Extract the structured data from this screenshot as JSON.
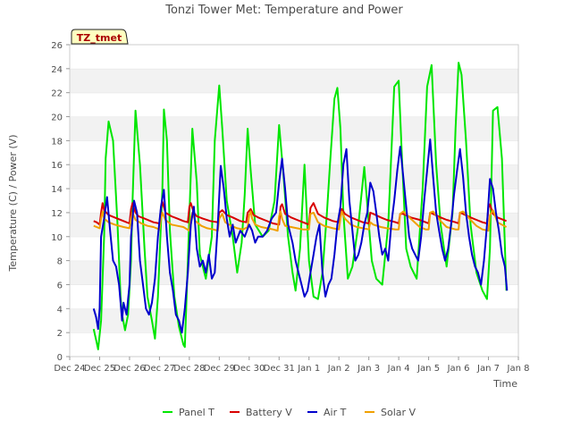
{
  "chart_data": {
    "type": "line",
    "title": "Tonzi Tower Met: Temperature and Power",
    "xlabel": "Time",
    "ylabel": "Temperature (C) / Power (V)",
    "badge": "TZ_tmet",
    "ylim": [
      0,
      26
    ],
    "xlim": [
      0,
      15
    ],
    "grid": "horizontal bands",
    "legend_position": "bottom",
    "x_ticks": [
      {
        "pos": 0,
        "label": "Dec 24"
      },
      {
        "pos": 1,
        "label": "Dec 25"
      },
      {
        "pos": 2,
        "label": "Dec 26"
      },
      {
        "pos": 3,
        "label": "Dec 27"
      },
      {
        "pos": 4,
        "label": "Dec 28"
      },
      {
        "pos": 5,
        "label": "Dec 29"
      },
      {
        "pos": 6,
        "label": "Dec 30"
      },
      {
        "pos": 7,
        "label": "Dec 31"
      },
      {
        "pos": 8,
        "label": "Jan 1"
      },
      {
        "pos": 9,
        "label": "Jan 2"
      },
      {
        "pos": 10,
        "label": "Jan 3"
      },
      {
        "pos": 11,
        "label": "Jan 4"
      },
      {
        "pos": 12,
        "label": "Jan 5"
      },
      {
        "pos": 13,
        "label": "Jan 6"
      },
      {
        "pos": 14,
        "label": "Jan 7"
      },
      {
        "pos": 15,
        "label": "Jan 8"
      }
    ],
    "y_ticks": [
      0,
      2,
      4,
      6,
      8,
      10,
      12,
      14,
      16,
      18,
      20,
      22,
      24,
      26
    ],
    "series": [
      {
        "name": "Panel T",
        "color": "#00e600",
        "x": [
          0.8,
          0.9,
          0.95,
          1.05,
          1.15,
          1.2,
          1.3,
          1.45,
          1.6,
          1.7,
          1.75,
          1.85,
          1.95,
          2.05,
          2.1,
          2.2,
          2.35,
          2.5,
          2.6,
          2.75,
          2.85,
          2.95,
          3.1,
          3.15,
          3.25,
          3.35,
          3.5,
          3.65,
          3.8,
          3.85,
          3.95,
          4.1,
          4.25,
          4.35,
          4.55,
          4.75,
          4.85,
          5.0,
          5.1,
          5.25,
          5.45,
          5.6,
          5.75,
          5.85,
          5.95,
          6.05,
          6.2,
          6.45,
          6.65,
          6.85,
          7.0,
          7.15,
          7.3,
          7.45,
          7.55,
          7.7,
          7.85,
          8.0,
          8.15,
          8.3,
          8.45,
          8.6,
          8.7,
          8.85,
          8.95,
          9.05,
          9.15,
          9.3,
          9.45,
          9.65,
          9.85,
          10.0,
          10.1,
          10.25,
          10.45,
          10.65,
          10.85,
          11.0,
          11.1,
          11.25,
          11.4,
          11.6,
          11.8,
          11.95,
          12.1,
          12.25,
          12.4,
          12.6,
          12.8,
          12.9,
          13.0,
          13.1,
          13.25,
          13.4,
          13.6,
          13.8,
          13.95,
          14.05,
          14.15,
          14.3,
          14.45,
          14.6
        ],
        "values": [
          2.3,
          1.2,
          0.6,
          3.0,
          10.0,
          16.5,
          19.6,
          18.0,
          11.0,
          5.0,
          3.5,
          2.2,
          3.5,
          8.0,
          13.0,
          20.5,
          16.0,
          9.0,
          5.0,
          3.0,
          1.5,
          5.0,
          14.0,
          20.6,
          18.0,
          10.5,
          5.0,
          2.5,
          1.0,
          0.8,
          8.0,
          19.0,
          14.5,
          8.5,
          6.5,
          10.0,
          18.0,
          22.6,
          19.0,
          13.0,
          10.0,
          7.0,
          9.5,
          13.5,
          19.0,
          15.5,
          11.0,
          10.0,
          10.5,
          13.0,
          19.3,
          15.0,
          10.0,
          7.0,
          5.5,
          9.0,
          16.0,
          8.0,
          5.0,
          4.8,
          7.0,
          12.0,
          16.0,
          21.5,
          22.4,
          19.0,
          12.0,
          6.5,
          7.5,
          11.0,
          15.8,
          11.0,
          8.0,
          6.5,
          6.0,
          11.0,
          22.5,
          23.0,
          17.0,
          9.0,
          7.5,
          6.5,
          14.0,
          22.5,
          24.3,
          16.0,
          11.0,
          7.5,
          12.0,
          19.0,
          24.5,
          23.5,
          18.0,
          11.0,
          7.0,
          5.5,
          4.8,
          9.0,
          20.5,
          20.8,
          16.5,
          5.5
        ]
      },
      {
        "name": "Battery V",
        "color": "#d80000",
        "x": [
          0.8,
          0.9,
          1.0,
          1.05,
          1.1,
          1.15,
          1.3,
          1.5,
          1.8,
          2.0,
          2.05,
          2.1,
          2.2,
          2.3,
          2.5,
          2.8,
          3.0,
          3.05,
          3.1,
          3.2,
          3.4,
          3.6,
          3.8,
          3.95,
          4.0,
          4.05,
          4.15,
          4.25,
          4.45,
          4.7,
          4.95,
          5.0,
          5.1,
          5.25,
          5.45,
          5.7,
          5.9,
          5.95,
          6.05,
          6.15,
          6.3,
          6.5,
          6.8,
          7.0,
          7.05,
          7.1,
          7.2,
          7.4,
          7.6,
          7.8,
          8.0,
          8.05,
          8.15,
          8.3,
          8.5,
          8.8,
          9.0,
          9.05,
          9.1,
          9.2,
          9.4,
          9.6,
          9.8,
          10.0,
          10.05,
          10.15,
          10.4,
          10.6,
          10.9,
          11.0,
          11.05,
          11.15,
          11.4,
          11.7,
          11.9,
          12.0,
          12.05,
          12.15,
          12.4,
          12.6,
          12.9,
          13.0,
          13.05,
          13.15,
          13.4,
          13.6,
          13.8,
          13.95,
          14.0,
          14.05,
          14.15,
          14.3,
          14.6
        ],
        "values": [
          11.3,
          11.2,
          11.0,
          12.0,
          12.8,
          12.2,
          11.8,
          11.6,
          11.3,
          11.1,
          12.3,
          12.8,
          12.0,
          11.7,
          11.5,
          11.2,
          11.1,
          12.4,
          12.9,
          12.0,
          11.7,
          11.5,
          11.3,
          11.2,
          12.5,
          12.8,
          12.0,
          11.7,
          11.5,
          11.3,
          11.2,
          12.0,
          12.2,
          11.8,
          11.6,
          11.3,
          11.2,
          12.0,
          12.3,
          11.8,
          11.6,
          11.4,
          11.1,
          11.0,
          12.5,
          12.7,
          11.9,
          11.6,
          11.4,
          11.2,
          11.0,
          12.4,
          12.8,
          11.9,
          11.6,
          11.3,
          11.2,
          11.9,
          12.3,
          11.9,
          11.6,
          11.4,
          11.2,
          11.1,
          12.0,
          11.9,
          11.6,
          11.4,
          11.2,
          11.1,
          11.9,
          11.9,
          11.6,
          11.4,
          11.2,
          11.1,
          12.0,
          11.9,
          11.6,
          11.4,
          11.2,
          11.1,
          12.0,
          11.9,
          11.6,
          11.4,
          11.2,
          11.1,
          12.4,
          12.7,
          11.9,
          11.6,
          11.3
        ]
      },
      {
        "name": "Air T",
        "color": "#0000cc",
        "x": [
          0.8,
          0.88,
          0.95,
          1.0,
          1.05,
          1.15,
          1.25,
          1.35,
          1.45,
          1.55,
          1.65,
          1.75,
          1.8,
          1.9,
          2.0,
          2.05,
          2.15,
          2.25,
          2.35,
          2.45,
          2.55,
          2.65,
          2.75,
          2.85,
          2.95,
          3.05,
          3.15,
          3.25,
          3.35,
          3.45,
          3.55,
          3.65,
          3.75,
          3.85,
          3.95,
          4.05,
          4.15,
          4.25,
          4.35,
          4.45,
          4.55,
          4.65,
          4.75,
          4.85,
          4.95,
          5.05,
          5.15,
          5.25,
          5.35,
          5.45,
          5.55,
          5.7,
          5.85,
          6.0,
          6.1,
          6.2,
          6.3,
          6.45,
          6.6,
          6.75,
          6.9,
          7.0,
          7.1,
          7.2,
          7.3,
          7.45,
          7.55,
          7.65,
          7.75,
          7.85,
          7.95,
          8.05,
          8.15,
          8.25,
          8.35,
          8.45,
          8.55,
          8.65,
          8.75,
          8.85,
          8.95,
          9.05,
          9.15,
          9.25,
          9.35,
          9.45,
          9.55,
          9.65,
          9.75,
          9.85,
          9.95,
          10.05,
          10.15,
          10.25,
          10.35,
          10.45,
          10.55,
          10.65,
          10.75,
          10.85,
          10.95,
          11.05,
          11.15,
          11.25,
          11.35,
          11.45,
          11.55,
          11.65,
          11.75,
          11.85,
          11.95,
          12.05,
          12.15,
          12.25,
          12.35,
          12.45,
          12.55,
          12.65,
          12.75,
          12.85,
          12.95,
          13.05,
          13.15,
          13.25,
          13.35,
          13.45,
          13.55,
          13.65,
          13.75,
          13.85,
          13.95,
          14.05,
          14.15,
          14.25,
          14.35,
          14.45,
          14.55,
          14.62
        ],
        "values": [
          4.0,
          3.3,
          2.3,
          4.0,
          10.0,
          11.5,
          13.3,
          10.5,
          8.0,
          7.5,
          6.0,
          3.0,
          4.5,
          3.5,
          6.0,
          10.0,
          13.0,
          12.0,
          8.0,
          6.0,
          4.0,
          3.5,
          4.5,
          6.5,
          10.0,
          12.5,
          13.9,
          10.0,
          7.0,
          5.5,
          3.5,
          3.0,
          2.0,
          4.0,
          7.0,
          11.0,
          12.5,
          9.0,
          7.5,
          8.0,
          7.0,
          8.5,
          6.5,
          7.0,
          11.0,
          15.9,
          14.0,
          11.5,
          10.0,
          11.0,
          9.5,
          10.5,
          10.0,
          11.0,
          10.5,
          9.5,
          10.0,
          10.0,
          10.5,
          11.5,
          12.0,
          14.5,
          16.5,
          14.0,
          11.0,
          9.5,
          8.0,
          7.0,
          6.0,
          5.0,
          5.5,
          7.0,
          8.5,
          10.0,
          11.0,
          7.0,
          5.0,
          6.0,
          6.5,
          8.5,
          11.0,
          12.5,
          16.0,
          17.3,
          13.0,
          10.5,
          8.0,
          8.5,
          9.5,
          11.0,
          12.0,
          14.5,
          13.8,
          12.0,
          10.0,
          8.5,
          9.0,
          8.0,
          11.0,
          13.0,
          15.5,
          17.5,
          15.0,
          12.5,
          10.0,
          9.0,
          8.5,
          8.0,
          10.0,
          13.0,
          15.5,
          18.1,
          15.0,
          12.0,
          10.5,
          9.0,
          8.0,
          9.0,
          11.0,
          13.5,
          15.5,
          17.3,
          15.0,
          12.0,
          10.0,
          8.5,
          7.5,
          7.0,
          6.0,
          8.0,
          11.0,
          14.8,
          14.0,
          12.0,
          10.5,
          8.5,
          7.5,
          5.5
        ]
      },
      {
        "name": "Solar V",
        "color": "#f0a000",
        "x": [
          0.8,
          0.9,
          1.0,
          1.05,
          1.1,
          1.15,
          1.3,
          1.5,
          1.8,
          2.0,
          2.05,
          2.1,
          2.2,
          2.4,
          2.6,
          2.8,
          3.0,
          3.05,
          3.1,
          3.2,
          3.4,
          3.6,
          3.8,
          4.0,
          4.05,
          4.1,
          4.2,
          4.4,
          4.6,
          4.8,
          4.95,
          5.0,
          5.1,
          5.2,
          5.4,
          5.6,
          5.8,
          5.95,
          6.0,
          6.05,
          6.1,
          6.2,
          6.4,
          6.6,
          6.8,
          6.95,
          7.0,
          7.05,
          7.1,
          7.2,
          7.4,
          7.6,
          7.8,
          8.0,
          8.05,
          8.15,
          8.3,
          8.5,
          8.8,
          9.0,
          9.05,
          9.1,
          9.2,
          9.4,
          9.6,
          9.8,
          10.0,
          10.05,
          10.15,
          10.4,
          10.6,
          10.9,
          11.0,
          11.05,
          11.15,
          11.4,
          11.7,
          11.9,
          12.0,
          12.05,
          12.15,
          12.4,
          12.6,
          12.9,
          13.0,
          13.05,
          13.15,
          13.4,
          13.6,
          13.8,
          14.0,
          14.05,
          14.15,
          14.3,
          14.6
        ],
        "values": [
          10.9,
          10.8,
          10.7,
          11.5,
          12.1,
          11.5,
          11.2,
          11.0,
          10.8,
          10.7,
          11.5,
          12.0,
          11.4,
          11.1,
          10.9,
          10.8,
          10.6,
          11.5,
          12.0,
          11.4,
          11.0,
          10.9,
          10.8,
          10.5,
          11.5,
          12.0,
          11.3,
          10.9,
          10.7,
          10.6,
          10.5,
          11.5,
          11.9,
          11.2,
          10.9,
          10.7,
          10.6,
          10.8,
          11.8,
          12.1,
          11.5,
          11.0,
          10.8,
          10.7,
          10.6,
          10.5,
          11.7,
          12.1,
          11.5,
          10.9,
          10.8,
          10.7,
          10.6,
          10.6,
          11.9,
          12.0,
          11.2,
          10.9,
          10.7,
          10.6,
          11.5,
          12.1,
          11.5,
          11.0,
          10.8,
          10.7,
          10.6,
          11.2,
          11.0,
          10.8,
          10.7,
          10.6,
          10.6,
          11.9,
          12.1,
          11.5,
          10.8,
          10.6,
          10.6,
          12.0,
          12.1,
          11.3,
          10.8,
          10.6,
          10.6,
          12.0,
          12.1,
          11.4,
          10.9,
          10.6,
          10.5,
          11.8,
          12.2,
          11.2,
          10.8
        ]
      }
    ]
  }
}
